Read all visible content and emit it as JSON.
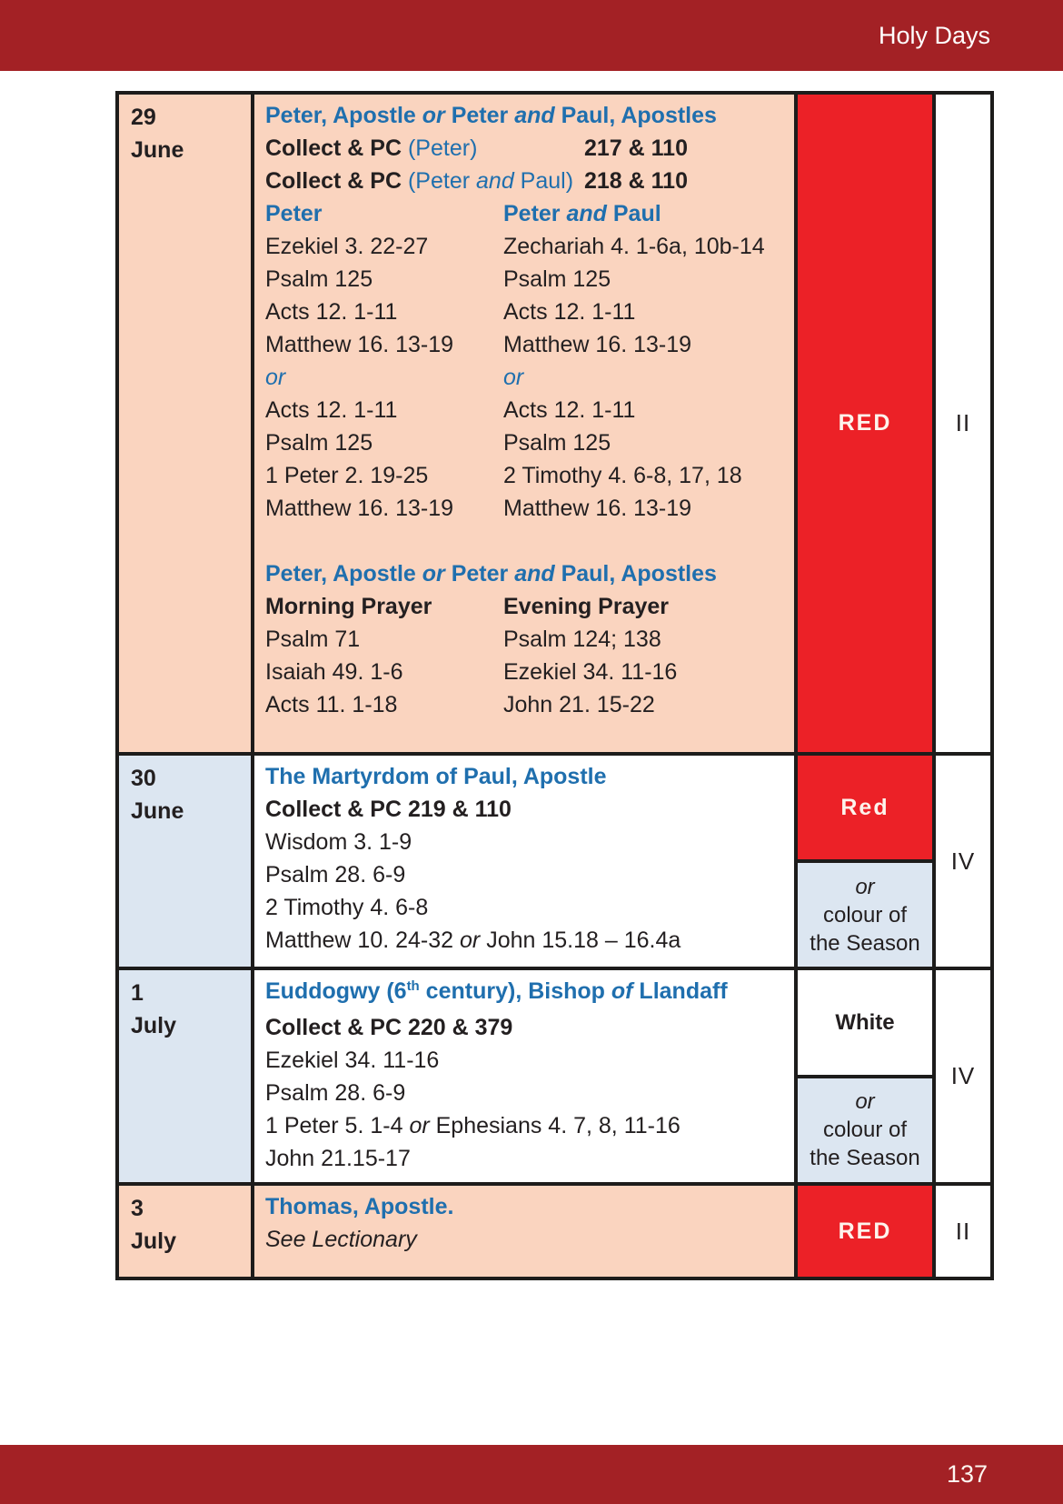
{
  "page": {
    "header_title": "Holy Days",
    "page_number": "137"
  },
  "colors": {
    "brand_maroon": "#A32125",
    "liturgical_red": "#EC2127",
    "peach": "#FAD4BF",
    "light_blue": "#DCE6F1",
    "blue_text": "#1F6FAE",
    "dark_text": "#231F20"
  },
  "table": {
    "rows": [
      {
        "date": {
          "day": "29",
          "month": "June"
        },
        "date_bg": "peach",
        "content_bg": "peach",
        "numeral": "II",
        "colour_cells": [
          {
            "bg": "red",
            "lines": [
              [
                {
                  "t": "RED",
                  "s": "wb"
                }
              ]
            ]
          }
        ],
        "lines": [
          {
            "type": "full",
            "segments": [
              {
                "t": "Peter, Apostle ",
                "s": "bb"
              },
              {
                "t": "or",
                "s": "bbi"
              },
              {
                "t": " Peter ",
                "s": "bb"
              },
              {
                "t": "and",
                "s": "bbi"
              },
              {
                "t": " Paul, Apostles",
                "s": "bb"
              }
            ]
          },
          {
            "type": "tabbed",
            "left": [
              {
                "t": "Collect & PC ",
                "s": "b"
              },
              {
                "t": "(Peter)",
                "s": "bl"
              }
            ],
            "right": [
              {
                "t": "217 & 110",
                "s": "b"
              }
            ]
          },
          {
            "type": "tabbed",
            "left": [
              {
                "t": "Collect & PC ",
                "s": "b"
              },
              {
                "t": "(Peter ",
                "s": "bl"
              },
              {
                "t": "and",
                "s": "bli"
              },
              {
                "t": " Paul)",
                "s": "bl"
              }
            ],
            "right": [
              {
                "t": "218 & 110",
                "s": "b"
              }
            ]
          },
          {
            "type": "cols",
            "left": [
              {
                "t": "Peter",
                "s": "bb"
              }
            ],
            "right": [
              {
                "t": "Peter ",
                "s": "bb"
              },
              {
                "t": "and",
                "s": "bbi"
              },
              {
                "t": " Paul",
                "s": "bb"
              }
            ]
          },
          {
            "type": "cols",
            "left": [
              {
                "t": "Ezekiel 3. 22-27",
                "s": "r"
              }
            ],
            "right": [
              {
                "t": "Zechariah 4. 1-6a, 10b-14",
                "s": "r"
              }
            ]
          },
          {
            "type": "cols",
            "left": [
              {
                "t": "Psalm 125",
                "s": "r"
              }
            ],
            "right": [
              {
                "t": "Psalm 125",
                "s": "r"
              }
            ]
          },
          {
            "type": "cols",
            "left": [
              {
                "t": "Acts 12. 1-11",
                "s": "r"
              }
            ],
            "right": [
              {
                "t": "Acts 12. 1-11",
                "s": "r"
              }
            ]
          },
          {
            "type": "cols",
            "left": [
              {
                "t": "Matthew 16. 13-19",
                "s": "r"
              }
            ],
            "right": [
              {
                "t": "Matthew 16. 13-19",
                "s": "r"
              }
            ]
          },
          {
            "type": "cols",
            "left": [
              {
                "t": "or",
                "s": "bli"
              }
            ],
            "right": [
              {
                "t": "or",
                "s": "bli"
              }
            ]
          },
          {
            "type": "cols",
            "left": [
              {
                "t": "Acts 12. 1-11",
                "s": "r"
              }
            ],
            "right": [
              {
                "t": "Acts 12. 1-11",
                "s": "r"
              }
            ]
          },
          {
            "type": "cols",
            "left": [
              {
                "t": "Psalm 125",
                "s": "r"
              }
            ],
            "right": [
              {
                "t": "Psalm 125",
                "s": "r"
              }
            ]
          },
          {
            "type": "cols",
            "left": [
              {
                "t": "1 Peter 2. 19-25",
                "s": "r"
              }
            ],
            "right": [
              {
                "t": "2 Timothy 4. 6-8, 17, 18",
                "s": "r"
              }
            ]
          },
          {
            "type": "cols",
            "left": [
              {
                "t": "Matthew 16. 13-19",
                "s": "r"
              }
            ],
            "right": [
              {
                "t": "Matthew 16. 13-19",
                "s": "r"
              }
            ]
          },
          {
            "type": "blank"
          },
          {
            "type": "full",
            "segments": [
              {
                "t": "Peter, Apostle ",
                "s": "bb"
              },
              {
                "t": "or",
                "s": "bbi"
              },
              {
                "t": " Peter ",
                "s": "bb"
              },
              {
                "t": "and",
                "s": "bbi"
              },
              {
                "t": " Paul, Apostles",
                "s": "bb"
              }
            ]
          },
          {
            "type": "cols",
            "left": [
              {
                "t": "Morning Prayer",
                "s": "b"
              }
            ],
            "right": [
              {
                "t": "Evening Prayer",
                "s": "b"
              }
            ]
          },
          {
            "type": "cols",
            "left": [
              {
                "t": "Psalm 71",
                "s": "r"
              }
            ],
            "right": [
              {
                "t": "Psalm 124; 138",
                "s": "r"
              }
            ]
          },
          {
            "type": "cols",
            "left": [
              {
                "t": "Isaiah 49. 1-6",
                "s": "r"
              }
            ],
            "right": [
              {
                "t": "Ezekiel 34. 11-16",
                "s": "r"
              }
            ]
          },
          {
            "type": "cols",
            "left": [
              {
                "t": "Acts 11. 1-18",
                "s": "r"
              }
            ],
            "right": [
              {
                "t": "John 21. 15-22",
                "s": "r"
              }
            ]
          }
        ]
      },
      {
        "date": {
          "day": "30",
          "month": "June"
        },
        "date_bg": "blue",
        "content_bg": "white",
        "numeral": "IV",
        "colour_cells": [
          {
            "bg": "red",
            "lines": [
              [
                {
                  "t": "Red",
                  "s": "wb"
                }
              ]
            ]
          },
          {
            "bg": "blue",
            "lines": [
              [
                {
                  "t": "or",
                  "s": "i"
                }
              ],
              [
                {
                  "t": "colour of",
                  "s": "r"
                }
              ],
              [
                {
                  "t": "the Season",
                  "s": "r"
                }
              ]
            ]
          }
        ],
        "lines": [
          {
            "type": "full",
            "segments": [
              {
                "t": "The Martyrdom of Paul, Apostle",
                "s": "bb"
              }
            ]
          },
          {
            "type": "full",
            "segments": [
              {
                "t": "Collect & PC 219 & 110",
                "s": "b"
              }
            ]
          },
          {
            "type": "full",
            "segments": [
              {
                "t": "Wisdom 3. 1-9",
                "s": "r"
              }
            ]
          },
          {
            "type": "full",
            "segments": [
              {
                "t": "Psalm 28. 6-9",
                "s": "r"
              }
            ]
          },
          {
            "type": "full",
            "segments": [
              {
                "t": "2 Timothy 4. 6-8",
                "s": "r"
              }
            ]
          },
          {
            "type": "full",
            "segments": [
              {
                "t": "Matthew 10. 24-32 ",
                "s": "r"
              },
              {
                "t": "or",
                "s": "i"
              },
              {
                "t": " John 15.18 – 16.4a",
                "s": "r"
              }
            ]
          }
        ]
      },
      {
        "date": {
          "day": "1",
          "month": "July"
        },
        "date_bg": "blue",
        "content_bg": "white",
        "numeral": "IV",
        "colour_cells": [
          {
            "bg": "white",
            "lines": [
              [
                {
                  "t": "White",
                  "s": "b"
                }
              ]
            ]
          },
          {
            "bg": "blue",
            "lines": [
              [
                {
                  "t": "or",
                  "s": "i"
                }
              ],
              [
                {
                  "t": "colour of",
                  "s": "r"
                }
              ],
              [
                {
                  "t": "the Season",
                  "s": "r"
                }
              ]
            ]
          }
        ],
        "lines": [
          {
            "type": "full",
            "segments": [
              {
                "t": "Euddogwy (6",
                "s": "bb"
              },
              {
                "t": "th",
                "s": "bbsup"
              },
              {
                "t": " century), Bishop ",
                "s": "bb"
              },
              {
                "t": "of",
                "s": "bbi"
              },
              {
                "t": " Llandaff",
                "s": "bb"
              }
            ]
          },
          {
            "type": "full",
            "segments": [
              {
                "t": "Collect & PC 220 & 379",
                "s": "b"
              }
            ]
          },
          {
            "type": "full",
            "segments": [
              {
                "t": "Ezekiel 34. 11-16",
                "s": "r"
              }
            ]
          },
          {
            "type": "full",
            "segments": [
              {
                "t": "Psalm 28. 6-9",
                "s": "r"
              }
            ]
          },
          {
            "type": "full",
            "segments": [
              {
                "t": "1 Peter 5. 1-4 ",
                "s": "r"
              },
              {
                "t": "or",
                "s": "i"
              },
              {
                "t": " Ephesians 4. 7, 8, 11-16",
                "s": "r"
              }
            ]
          },
          {
            "type": "full",
            "segments": [
              {
                "t": "John 21.15-17",
                "s": "r"
              }
            ]
          }
        ]
      },
      {
        "date": {
          "day": "3",
          "month": "July"
        },
        "date_bg": "peach",
        "content_bg": "peach",
        "numeral": "II",
        "colour_cells": [
          {
            "bg": "red",
            "lines": [
              [
                {
                  "t": "RED",
                  "s": "wb"
                }
              ]
            ]
          }
        ],
        "lines": [
          {
            "type": "full",
            "segments": [
              {
                "t": "Thomas, Apostle.",
                "s": "bb"
              }
            ]
          },
          {
            "type": "full",
            "segments": [
              {
                "t": "See Lectionary",
                "s": "i"
              }
            ]
          }
        ]
      }
    ]
  }
}
